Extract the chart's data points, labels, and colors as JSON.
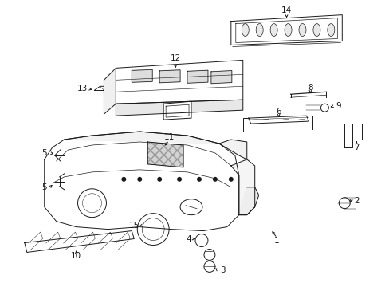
{
  "bg_color": "#ffffff",
  "line_color": "#1a1a1a",
  "fig_width": 4.89,
  "fig_height": 3.6,
  "dpi": 100,
  "label_fontsize": 7.5,
  "lw": 0.7
}
